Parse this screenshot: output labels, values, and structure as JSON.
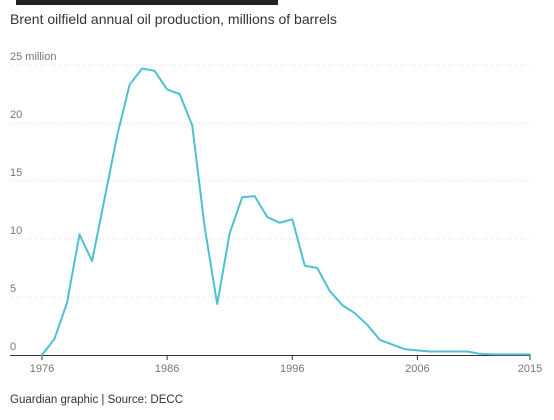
{
  "header": {
    "title": "Brent oilfield annual oil production, millions of barrels"
  },
  "footer": {
    "source": "Guardian graphic | Source: DECC"
  },
  "colors": {
    "line": "#4fc0cf",
    "grid": "#dcdcdc",
    "axis": "#333333",
    "tick_label": "#767676",
    "text": "#333333"
  },
  "chart_data": {
    "type": "line",
    "title": "Brent oilfield annual oil production, millions of barrels",
    "xlabel": "",
    "ylabel": "",
    "xlim": [
      1976,
      2015
    ],
    "ylim": [
      0,
      25
    ],
    "grid": true,
    "legend": "none",
    "x_ticks": [
      {
        "value": 1976,
        "label": "1976"
      },
      {
        "value": 1986,
        "label": "1986"
      },
      {
        "value": 1996,
        "label": "1996"
      },
      {
        "value": 2006,
        "label": "2006"
      },
      {
        "value": 2015,
        "label": "2015"
      }
    ],
    "y_ticks": [
      {
        "value": 0,
        "label": "0"
      },
      {
        "value": 5,
        "label": "5"
      },
      {
        "value": 10,
        "label": "10"
      },
      {
        "value": 15,
        "label": "15"
      },
      {
        "value": 20,
        "label": "20"
      },
      {
        "value": 25,
        "label": "25 million"
      }
    ],
    "series": [
      {
        "x": [
          1976,
          1977,
          1978,
          1979,
          1980,
          1981,
          1982,
          1983,
          1984,
          1985,
          1986,
          1987,
          1988,
          1989,
          1990,
          1991,
          1992,
          1993,
          1994,
          1995,
          1996,
          1997,
          1998,
          1999,
          2000,
          2001,
          2002,
          2003,
          2004,
          2005,
          2006,
          2007,
          2008,
          2009,
          2010,
          2011,
          2012,
          2013,
          2014,
          2015
        ],
        "y": [
          0.0,
          1.4,
          4.5,
          10.4,
          8.1,
          13.5,
          18.9,
          23.3,
          24.7,
          24.5,
          22.9,
          22.5,
          19.8,
          11.0,
          4.4,
          10.5,
          13.6,
          13.7,
          11.9,
          11.4,
          11.7,
          7.7,
          7.5,
          5.5,
          4.3,
          3.6,
          2.6,
          1.3,
          0.9,
          0.5,
          0.4,
          0.3,
          0.3,
          0.3,
          0.3,
          0.1,
          0.05,
          0.05,
          0.05,
          0.05
        ]
      }
    ]
  }
}
